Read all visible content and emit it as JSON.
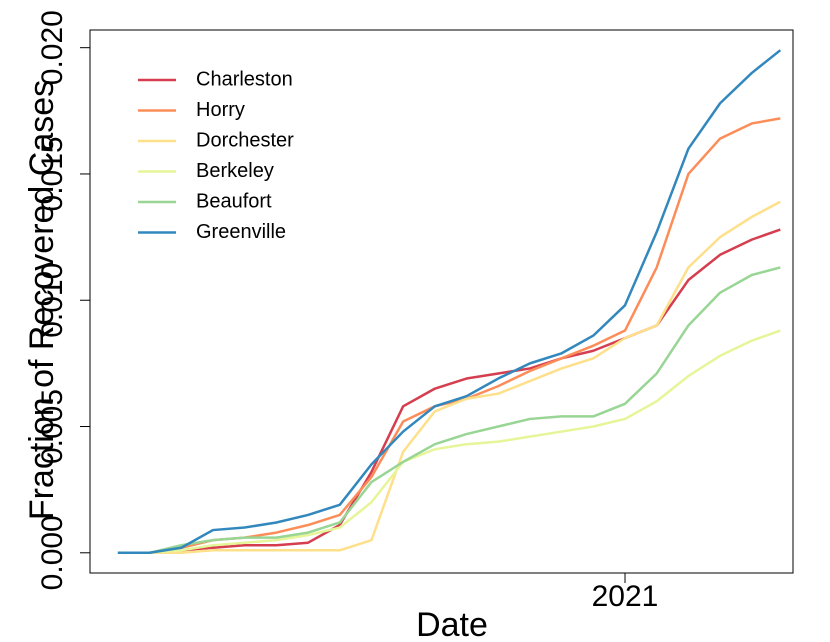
{
  "chart_data": {
    "type": "line",
    "x_label": "Date",
    "y_label": "Fraction of Recovered Cases",
    "x": [
      2020.2,
      2020.25,
      2020.3,
      2020.35,
      2020.4,
      2020.45,
      2020.5,
      2020.55,
      2020.6,
      2020.65,
      2020.7,
      2020.75,
      2020.8,
      2020.85,
      2020.9,
      2020.95,
      2021.0,
      2021.05,
      2021.1,
      2021.15,
      2021.2,
      2021.245
    ],
    "series": [
      {
        "name": "Charleston",
        "color": "#d53e4f",
        "values": [
          0,
          0,
          0.0001,
          0.0002,
          0.0003,
          0.0003,
          0.0004,
          0.0011,
          0.0032,
          0.0058,
          0.0065,
          0.0069,
          0.0071,
          0.0073,
          0.0077,
          0.008,
          0.0085,
          0.009,
          0.0108,
          0.0118,
          0.0124,
          0.0128
        ]
      },
      {
        "name": "Horry",
        "color": "#fc8d59",
        "values": [
          0,
          0,
          0.0002,
          0.0005,
          0.0006,
          0.0008,
          0.0011,
          0.0015,
          0.003,
          0.0052,
          0.0058,
          0.0061,
          0.0066,
          0.0072,
          0.0077,
          0.0082,
          0.0088,
          0.0113,
          0.015,
          0.0164,
          0.017,
          0.0172
        ]
      },
      {
        "name": "Dorchester",
        "color": "#fee08b",
        "values": [
          0,
          0,
          0,
          0.0001,
          0.0001,
          0.0001,
          0.0001,
          0.0001,
          0.0005,
          0.004,
          0.0056,
          0.0061,
          0.0063,
          0.0068,
          0.0073,
          0.0077,
          0.0085,
          0.009,
          0.0113,
          0.0125,
          0.0133,
          0.0139
        ]
      },
      {
        "name": "Berkeley",
        "color": "#e6f598",
        "values": [
          0,
          0,
          0.0001,
          0.0003,
          0.0004,
          0.0005,
          0.0007,
          0.001,
          0.002,
          0.0036,
          0.0041,
          0.0043,
          0.0044,
          0.0046,
          0.0048,
          0.005,
          0.0053,
          0.006,
          0.007,
          0.0078,
          0.0084,
          0.0088
        ]
      },
      {
        "name": "Beaufort",
        "color": "#99d594",
        "values": [
          0,
          0,
          0.0003,
          0.0005,
          0.0006,
          0.0006,
          0.0008,
          0.0012,
          0.0028,
          0.0036,
          0.0043,
          0.0047,
          0.005,
          0.0053,
          0.0054,
          0.0054,
          0.0059,
          0.0071,
          0.009,
          0.0103,
          0.011,
          0.0113
        ]
      },
      {
        "name": "Greenville",
        "color": "#3288bd",
        "values": [
          0,
          0,
          0.0002,
          0.0009,
          0.001,
          0.0012,
          0.0015,
          0.0019,
          0.0035,
          0.0048,
          0.0058,
          0.0062,
          0.0069,
          0.0075,
          0.0079,
          0.0086,
          0.0098,
          0.0127,
          0.016,
          0.0178,
          0.019,
          0.0199
        ]
      }
    ],
    "xlim": [
      2020.156,
      2021.265
    ],
    "xticks": [
      2021
    ],
    "ylim": [
      -0.0008,
      0.0207
    ],
    "yticks": [
      {
        "value": 0,
        "label": "0.000"
      },
      {
        "value": 0.005,
        "label": "0.005"
      },
      {
        "value": 0.01,
        "label": "0.010"
      },
      {
        "value": 0.015,
        "label": "0.015"
      },
      {
        "value": 0.02,
        "label": "0.020"
      }
    ],
    "legend": "top-left"
  }
}
